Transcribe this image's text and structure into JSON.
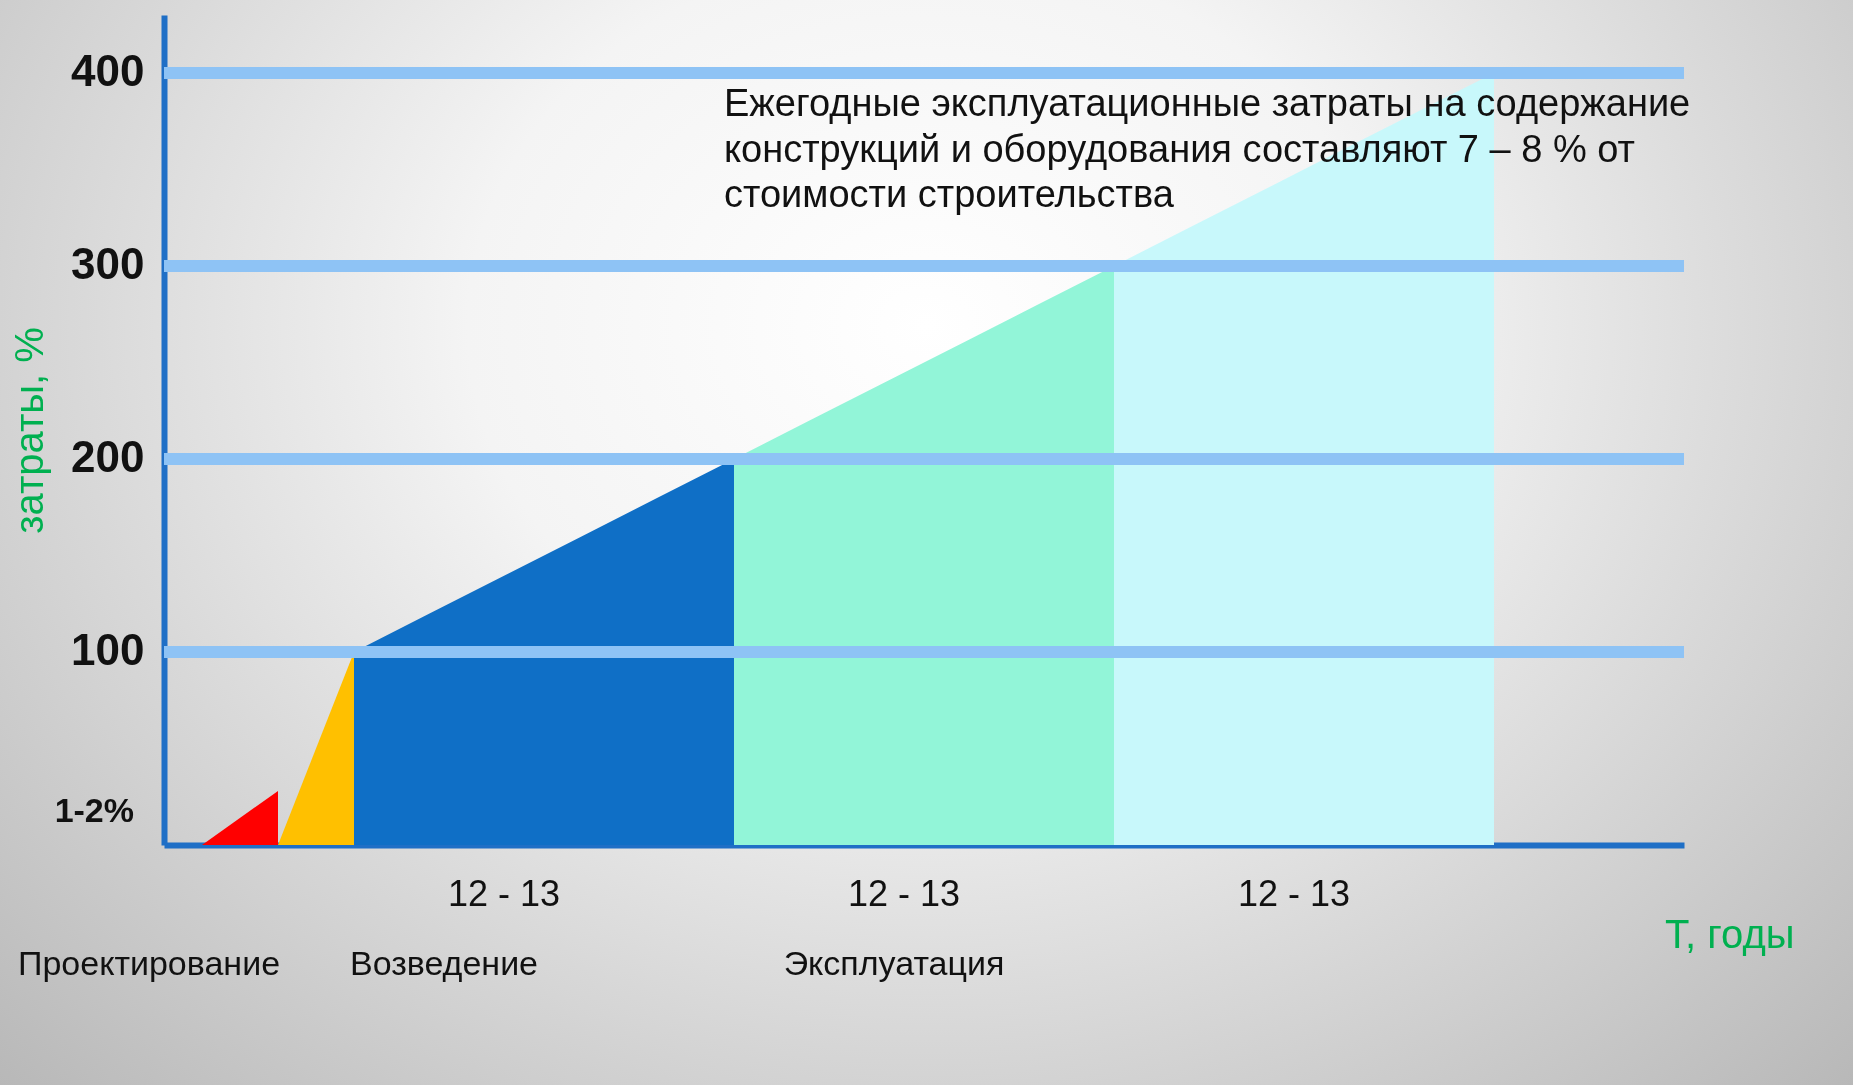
{
  "chart_data": {
    "type": "area",
    "xlabel": "Т, годы",
    "ylabel": "затраты, %",
    "categories": [
      null,
      null,
      null,
      null,
      null,
      null,
      null,
      null,
      null,
      null,
      null,
      null,
      null,
      null,
      null,
      null,
      null,
      null,
      null,
      null
    ],
    "series": [
      {
        "color": "#ff0000",
        "values": [
          0,
          28,
          null,
          null,
          null,
          null,
          null,
          null,
          null,
          null,
          null,
          null,
          null,
          null,
          null,
          null,
          null,
          null,
          null,
          null
        ]
      },
      {
        "color": "#ffc000",
        "values": [
          null,
          0,
          100,
          null,
          null,
          null,
          null,
          null,
          null,
          null,
          null,
          null,
          null,
          null,
          null,
          null,
          null,
          null,
          null,
          null
        ]
      },
      {
        "color": "#0f6fc6",
        "values": [
          null,
          null,
          100,
          120,
          140,
          160,
          180,
          200,
          null,
          null,
          null,
          null,
          null,
          null,
          null,
          null,
          null,
          null,
          null,
          null
        ]
      },
      {
        "color": "#92f5d8",
        "values": [
          null,
          null,
          null,
          null,
          null,
          null,
          null,
          200,
          220,
          240,
          260,
          280,
          300,
          null,
          null,
          null,
          null,
          null,
          null,
          null
        ]
      },
      {
        "color": "#c8f8fb",
        "values": [
          null,
          null,
          null,
          null,
          null,
          null,
          null,
          null,
          null,
          null,
          null,
          null,
          300,
          320,
          340,
          360,
          380,
          400,
          null,
          null
        ]
      }
    ],
    "ylim": [
      0,
      430
    ],
    "yticks": [
      100,
      200,
      300,
      400
    ],
    "grid": "y",
    "tick_labels": "y",
    "annotations": [
      "Ежегодные эксплуатационные затраты на содержание конструкций и оборудования составляют 7 – 8 % от стоимости строительства",
      "1-2%",
      "12 - 13",
      "12 - 13",
      "12 - 13",
      "Проектирование",
      "Возведение",
      "Эксплуатация"
    ]
  }
}
